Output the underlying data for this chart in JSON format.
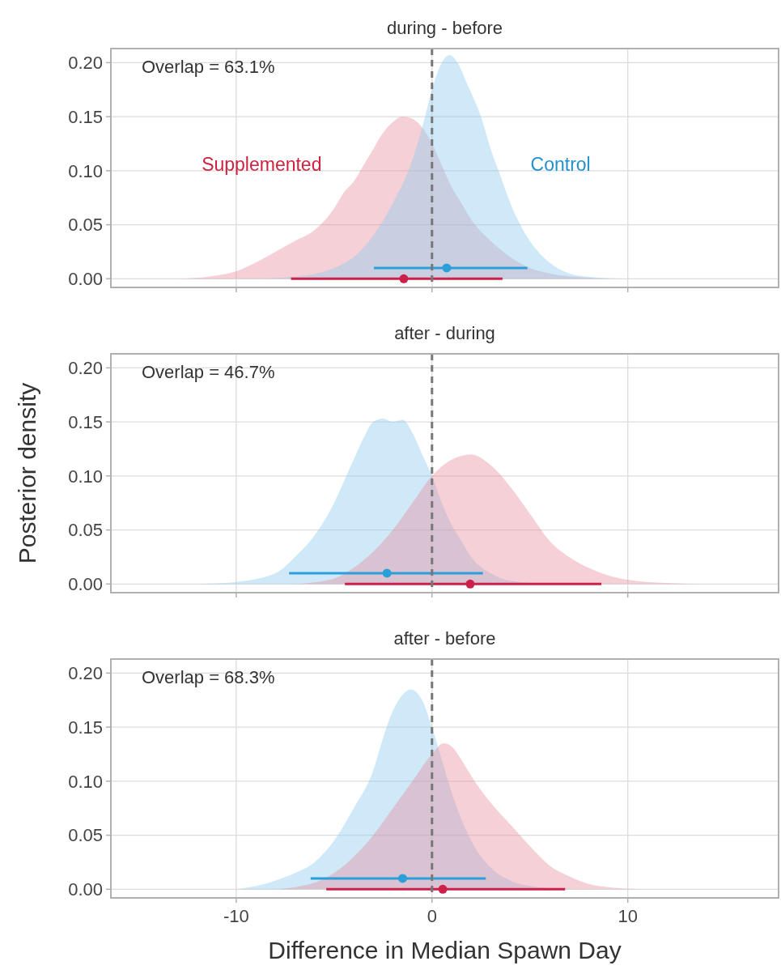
{
  "chart_data": [
    {
      "type": "area",
      "title": "during - before",
      "xlim": [
        -16.4,
        17.7
      ],
      "ylim": [
        -0.008,
        0.213
      ],
      "xticks": [
        -10,
        0,
        10
      ],
      "yticks": [
        {
          "value": 0,
          "label": "0.00"
        },
        {
          "value": 0.05,
          "label": "0.05"
        },
        {
          "value": 0.1,
          "label": "0.10"
        },
        {
          "value": 0.15,
          "label": "0.15"
        },
        {
          "value": 0.2,
          "label": "0.20"
        }
      ],
      "tick_labels": "y",
      "grid": true,
      "annotations": [
        "Overlap = 63.1%"
      ],
      "ref_lines": [
        {
          "axis": "x",
          "value": 0,
          "color": "#777777",
          "line_style": "dashed"
        }
      ],
      "series": [
        {
          "name": "Supplemented",
          "color": "#e8909f",
          "x": [
            -13,
            -11,
            -10,
            -9,
            -8,
            -7,
            -6,
            -5,
            -4.5,
            -4,
            -3.5,
            -3,
            -2.5,
            -2,
            -1.5,
            -1,
            -0.5,
            0,
            0.5,
            1,
            1.5,
            2,
            3,
            4,
            5,
            6,
            8,
            9
          ],
          "values": [
            0,
            0.003,
            0.007,
            0.015,
            0.025,
            0.035,
            0.045,
            0.065,
            0.08,
            0.09,
            0.105,
            0.12,
            0.135,
            0.145,
            0.15,
            0.148,
            0.14,
            0.125,
            0.105,
            0.085,
            0.07,
            0.055,
            0.035,
            0.02,
            0.01,
            0.005,
            0.001,
            0
          ]
        },
        {
          "name": "Control",
          "color": "#8ccbee",
          "x": [
            -9,
            -7,
            -5,
            -4,
            -3,
            -2,
            -1,
            -0.5,
            0,
            0.5,
            0.9,
            1.3,
            1.8,
            2.5,
            3,
            3.5,
            4,
            5,
            6,
            7,
            8,
            10
          ],
          "values": [
            0,
            0.002,
            0.01,
            0.02,
            0.04,
            0.07,
            0.11,
            0.14,
            0.175,
            0.2,
            0.207,
            0.2,
            0.18,
            0.15,
            0.12,
            0.095,
            0.07,
            0.035,
            0.015,
            0.005,
            0.002,
            0
          ]
        },
        {
          "type": "scatter",
          "color": "#2b9fd9",
          "x": [
            0.75
          ],
          "values": [
            0.01
          ],
          "xerrors": [
            [
              -2.97,
              4.87
            ]
          ],
          "marker": "circle"
        },
        {
          "type": "scatter",
          "color": "#cc1f4a",
          "x": [
            -1.44
          ],
          "values": [
            0
          ],
          "xerrors": [
            [
              -7.2,
              3.6
            ]
          ],
          "marker": "circle"
        }
      ]
    },
    {
      "type": "area",
      "title": "after - during",
      "ylabel": "Posterior density",
      "xlim": [
        -16.4,
        17.7
      ],
      "ylim": [
        -0.008,
        0.213
      ],
      "xticks": [
        -10,
        0,
        10
      ],
      "yticks": [
        {
          "value": 0,
          "label": "0.00"
        },
        {
          "value": 0.05,
          "label": "0.05"
        },
        {
          "value": 0.1,
          "label": "0.10"
        },
        {
          "value": 0.15,
          "label": "0.15"
        },
        {
          "value": 0.2,
          "label": "0.20"
        }
      ],
      "tick_labels": "y",
      "grid": true,
      "annotations": [
        "Overlap = 46.7%"
      ],
      "ref_lines": [
        {
          "axis": "x",
          "value": 0,
          "color": "#777777",
          "line_style": "dashed"
        }
      ],
      "series": [
        {
          "color": "#8ccbee",
          "x": [
            -12,
            -10,
            -8,
            -7,
            -6,
            -5,
            -4.5,
            -4,
            -3.5,
            -3,
            -2.5,
            -2,
            -1.5,
            -1,
            -0.5,
            0,
            0.5,
            1,
            1.5,
            2,
            3,
            4,
            6
          ],
          "values": [
            0,
            0.002,
            0.01,
            0.025,
            0.045,
            0.075,
            0.095,
            0.115,
            0.135,
            0.15,
            0.153,
            0.15,
            0.152,
            0.14,
            0.12,
            0.1,
            0.075,
            0.055,
            0.04,
            0.025,
            0.01,
            0.003,
            0
          ]
        },
        {
          "color": "#e8909f",
          "x": [
            -7,
            -5,
            -4,
            -3,
            -2,
            -1,
            0,
            1,
            2,
            3,
            4,
            5,
            6,
            7,
            8,
            9,
            10,
            12,
            14
          ],
          "values": [
            0,
            0.005,
            0.015,
            0.03,
            0.05,
            0.075,
            0.1,
            0.115,
            0.12,
            0.11,
            0.09,
            0.065,
            0.04,
            0.025,
            0.015,
            0.008,
            0.004,
            0.001,
            0
          ]
        },
        {
          "type": "scatter",
          "color": "#2b9fd9",
          "x": [
            -2.3
          ],
          "values": [
            0.01
          ],
          "xerrors": [
            [
              -7.3,
              2.6
            ]
          ],
          "marker": "circle"
        },
        {
          "type": "scatter",
          "color": "#cc1f4a",
          "x": [
            1.95
          ],
          "values": [
            0
          ],
          "xerrors": [
            [
              -4.45,
              8.65
            ]
          ],
          "marker": "circle"
        }
      ]
    },
    {
      "type": "area",
      "title": "after - before",
      "xlabel": "Difference in Median Spawn Day",
      "xlim": [
        -16.4,
        17.7
      ],
      "ylim": [
        -0.008,
        0.213
      ],
      "xticks": [
        -10,
        0,
        10
      ],
      "yticks": [
        {
          "value": 0,
          "label": "0.00"
        },
        {
          "value": 0.05,
          "label": "0.05"
        },
        {
          "value": 0.1,
          "label": "0.10"
        },
        {
          "value": 0.15,
          "label": "0.15"
        },
        {
          "value": 0.2,
          "label": "0.20"
        }
      ],
      "grid": true,
      "annotations": [
        "Overlap = 68.3%"
      ],
      "ref_lines": [
        {
          "axis": "x",
          "value": 0,
          "color": "#777777",
          "line_style": "dashed"
        }
      ],
      "series": [
        {
          "color": "#8ccbee",
          "x": [
            -10,
            -9,
            -8,
            -7,
            -6,
            -5,
            -4,
            -3,
            -2.5,
            -2,
            -1.5,
            -1.1,
            -0.5,
            0,
            0.5,
            1,
            1.5,
            2,
            3,
            4,
            5,
            7
          ],
          "values": [
            0,
            0.003,
            0.008,
            0.015,
            0.025,
            0.045,
            0.075,
            0.11,
            0.14,
            0.165,
            0.18,
            0.185,
            0.175,
            0.15,
            0.12,
            0.09,
            0.065,
            0.045,
            0.02,
            0.008,
            0.003,
            0
          ]
        },
        {
          "color": "#e8909f",
          "x": [
            -8,
            -7,
            -6,
            -5,
            -4,
            -3,
            -2,
            -1,
            0,
            0.6,
            1,
            1.5,
            2,
            3,
            4,
            5,
            6,
            7,
            8,
            9,
            11
          ],
          "values": [
            0,
            0.002,
            0.006,
            0.015,
            0.03,
            0.05,
            0.075,
            0.1,
            0.125,
            0.135,
            0.132,
            0.12,
            0.105,
            0.08,
            0.06,
            0.04,
            0.022,
            0.012,
            0.005,
            0.002,
            0
          ]
        },
        {
          "type": "scatter",
          "color": "#2b9fd9",
          "x": [
            -1.5
          ],
          "values": [
            0.01
          ],
          "xerrors": [
            [
              -6.2,
              2.75
            ]
          ],
          "marker": "circle"
        },
        {
          "type": "scatter",
          "color": "#cc1f4a",
          "x": [
            0.55
          ],
          "values": [
            0
          ],
          "xerrors": [
            [
              -5.4,
              6.8
            ]
          ],
          "marker": "circle"
        }
      ]
    }
  ]
}
